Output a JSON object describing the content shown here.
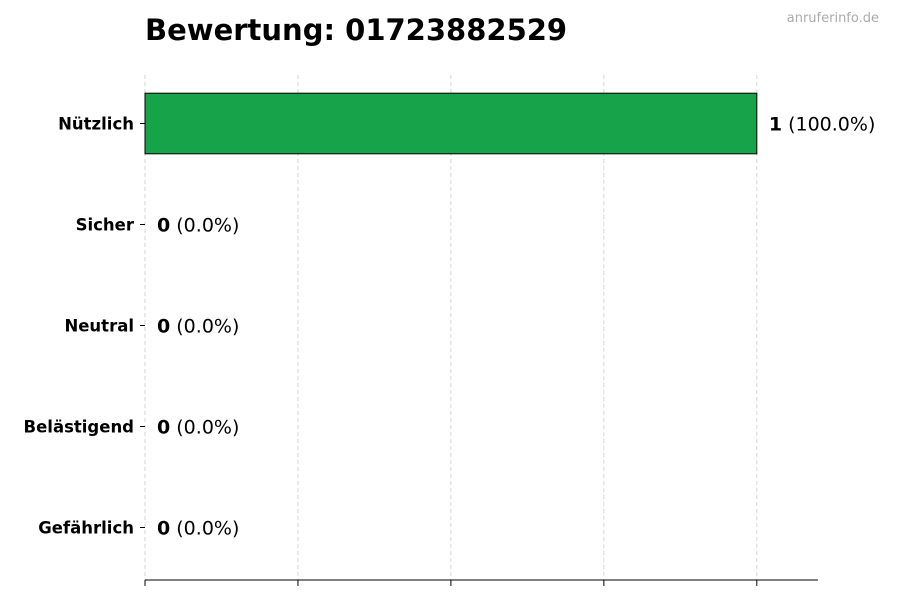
{
  "watermark": "anruferinfo.de",
  "chart_data": {
    "type": "bar",
    "orientation": "horizontal",
    "title": "Bewertung: 01723882529",
    "xlabel": "",
    "ylabel": "",
    "categories": [
      "Nützlich",
      "Sicher",
      "Neutral",
      "Belästigend",
      "Gefährlich"
    ],
    "values": [
      1,
      0,
      0,
      0,
      0
    ],
    "value_labels": [
      "1",
      "0",
      "0",
      "0",
      "0"
    ],
    "percent_labels": [
      "(100.0%)",
      "(0.0%)",
      "(0.0%)",
      "(0.0%)",
      "(0.0%)"
    ],
    "xlim": [
      0,
      1.1
    ],
    "xticks": [
      0,
      0.25,
      0.5,
      0.75,
      1.0
    ],
    "xtick_labels_shown": false,
    "grid": "x-dashed",
    "bar_color": "#16a34a",
    "legend": "none"
  }
}
